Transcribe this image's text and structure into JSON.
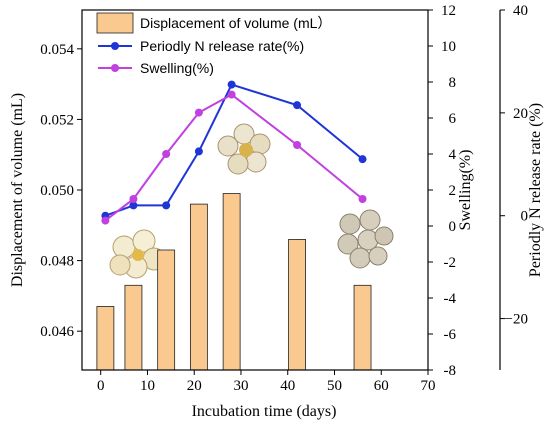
{
  "chart_data": {
    "type": "bar+line",
    "xlabel": "Incubation time (days)",
    "x_ticks": [
      0,
      10,
      20,
      30,
      40,
      50,
      60,
      70
    ],
    "xlim": [
      -4,
      70
    ],
    "legend_placement": "top-left",
    "bars": {
      "name": "Displacement of volume (mL）",
      "axis": "left",
      "color": "#f9c98f",
      "x": [
        1,
        7,
        14,
        21,
        28,
        42,
        56
      ],
      "values": [
        0.0467,
        0.0473,
        0.0483,
        0.0496,
        0.0499,
        0.0486,
        0.0473
      ]
    },
    "series": [
      {
        "name": "Periodly N release rate(%)",
        "axis": "right_outer",
        "color": "#1f35d6",
        "marker": "circle",
        "x": [
          1,
          7,
          14,
          21,
          28,
          42,
          56
        ],
        "values": [
          0,
          2,
          2,
          12.5,
          25.5,
          21.5,
          11
        ]
      },
      {
        "name": "Swelling(%)",
        "axis": "right_inner",
        "color": "#c040e0",
        "marker": "circle",
        "x": [
          1,
          7,
          14,
          21,
          28,
          42,
          56
        ],
        "values": [
          0.3,
          1.5,
          4,
          6.3,
          7.3,
          4.5,
          1.5
        ]
      }
    ],
    "left_axis": {
      "label": "Displacement of volume (mL)",
      "ylim": [
        0.0449,
        0.0551
      ],
      "ticks": [
        0.046,
        0.048,
        0.05,
        0.052,
        0.054
      ],
      "tick_labels": [
        "0.046",
        "0.048",
        "0.050",
        "0.052",
        "0.054"
      ]
    },
    "right_inner_axis": {
      "label": "Swelling(%)",
      "ylim": [
        -8,
        12
      ],
      "ticks": [
        -8,
        -6,
        -4,
        -2,
        0,
        2,
        4,
        6,
        8,
        10,
        12
      ],
      "tick_labels": [
        "-8",
        "-6",
        "-4",
        "-2",
        "0",
        "2",
        "4",
        "6",
        "8",
        "10",
        "12"
      ]
    },
    "right_outer_axis": {
      "label": "Periodly N release rate (%)",
      "ylim": [
        -30,
        40
      ],
      "ticks": [
        -20,
        0,
        20,
        40
      ],
      "tick_labels": [
        "−20",
        "0",
        "20",
        "40"
      ]
    }
  }
}
